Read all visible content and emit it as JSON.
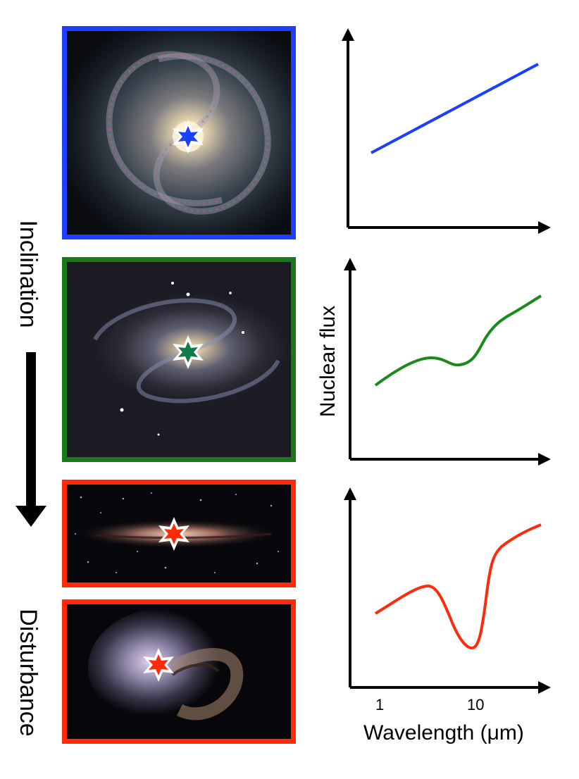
{
  "left_labels": {
    "top": "Inclination",
    "bottom": "Disturbance"
  },
  "panels": [
    {
      "name": "face-on-spiral-galaxy",
      "border_color": "#1f3fff",
      "marker_color": "#1f3fff"
    },
    {
      "name": "inclined-spiral-galaxy",
      "border_color": "#1a7a1a",
      "marker_color": "#0f7a4a"
    },
    {
      "name": "edge-on-galaxy",
      "border_color": "#ff2a0a",
      "marker_color": "#ff2a0a"
    },
    {
      "name": "merging-galaxies",
      "border_color": "#ff2a0a",
      "marker_color": "#ff2a0a"
    }
  ],
  "plots": {
    "ylabel": "Nuclear flux",
    "xlabel": "Wavelength (μm)",
    "xticks": [
      "1",
      "10"
    ],
    "series_colors": [
      "#1a3fff",
      "#1a8a1a",
      "#ff2a0a"
    ]
  }
}
